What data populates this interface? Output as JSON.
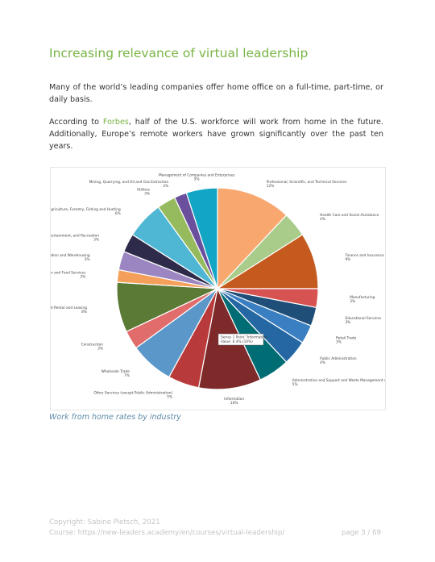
{
  "heading": "Increasing relevance of virtual leadership",
  "paragraph_1": "Many of the world’s leading companies offer home office on a full-time, part-time, or daily basis.",
  "paragraph_2": {
    "before": "According to ",
    "link": "Forbes",
    "after": ", half of the U.S. workforce will work from home in the future. Additionally, Europe’s remote workers have grown significantly over the past ten years."
  },
  "chart_data": {
    "type": "pie",
    "categories": [
      "Professional, Scientific, and Technical Services",
      "Health Care and Social Assistance",
      "Finance and Insurance",
      "Manufacturing",
      "Educational Services",
      "Retail Trade",
      "Public Administration",
      "Administrative and Support and Waste Management and Remediation Services",
      "Information",
      "Other Services (except Public Administration)",
      "Wholesale Trade",
      "Construction",
      "Real Estate and Rental and Leasing",
      "Accommodation and Food Services",
      "Transportation and Warehousing",
      "Arts, Entertainment, and Recreation",
      "Agriculture, Forestry, Fishing and Hunting",
      "Utilities",
      "Mining, Quarrying, and Oil and Gas Extraction",
      "Management of Companies and Enterprises"
    ],
    "values": [
      12,
      4,
      9,
      3,
      3,
      3,
      4,
      5,
      10,
      5,
      7,
      3,
      8,
      2,
      3,
      3,
      6,
      3,
      2,
      5
    ],
    "value_labels": [
      "12%",
      "4%",
      "9%",
      "3%",
      "3%",
      "3%",
      "4%",
      "5%",
      "10%",
      "5%",
      "7%",
      "3%",
      "8%",
      "2%",
      "3%",
      "3%",
      "6%",
      "3%",
      "2%",
      "5%"
    ],
    "colors": [
      "#f8a86f",
      "#a9cc8a",
      "#c55a1e",
      "#d65352",
      "#1f4e79",
      "#3a7fc1",
      "#2467a3",
      "#006d74",
      "#7f2a2a",
      "#b83a3a",
      "#5b97c9",
      "#e06c6c",
      "#5a7a35",
      "#f4a05a",
      "#9b86c1",
      "#2e2a4a",
      "#4fb7d3",
      "#96bb5f",
      "#6a4f9c",
      "#13a5c4"
    ],
    "tooltip": [
      "Series 1 Point \"Information\"",
      "Value: 6.4% (10%)"
    ]
  },
  "caption": "Work from home rates by industry",
  "footer": {
    "copyright": "Copyright: Sabine Pietsch, 2021",
    "course_label": "Course: ",
    "course_link": "https://new-leaders.academy/en/courses/virtual-leadership/",
    "page": "page 3 / 69"
  }
}
